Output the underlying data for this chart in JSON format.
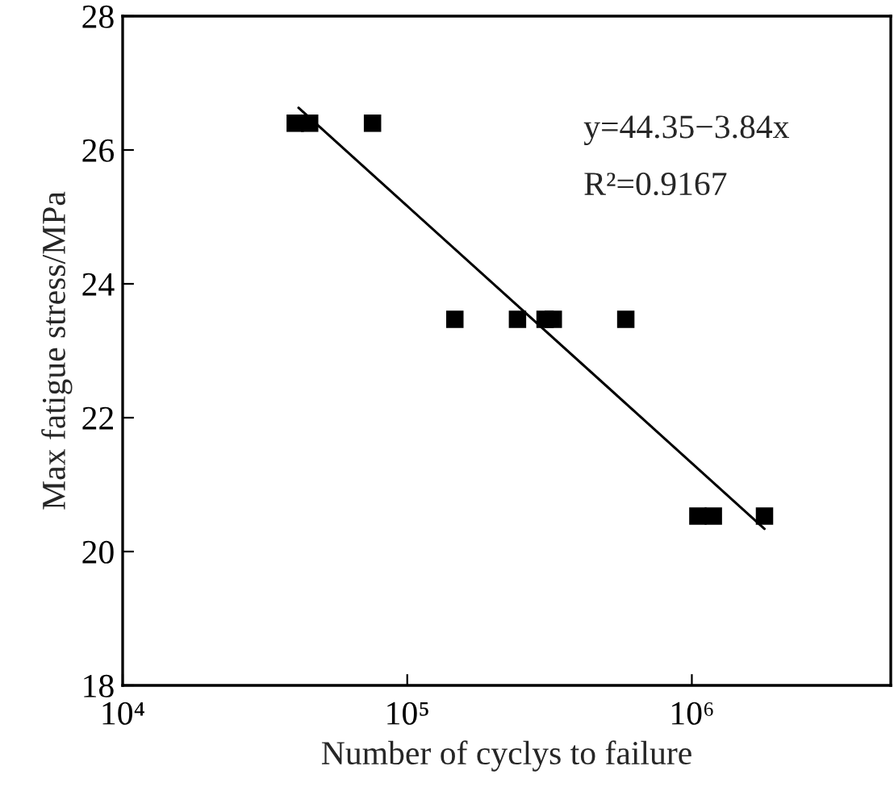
{
  "chart_data": {
    "type": "scatter",
    "xlabel": "Number of cyclys to failure",
    "ylabel": "Max fatigue stress/MPa",
    "log": "x",
    "marker": "square",
    "grid": false,
    "legend": false,
    "xlim": [
      10000,
      5000000
    ],
    "xticks": [
      {
        "value": 10000,
        "label": "10⁴"
      },
      {
        "value": 100000,
        "label": "10⁵"
      },
      {
        "value": 1000000,
        "label": "10⁶"
      }
    ],
    "ylim": [
      18,
      28
    ],
    "yticks": [
      18,
      20,
      22,
      24,
      26,
      28
    ],
    "series": [
      {
        "color": "#000000",
        "x": [
          40400,
          45400,
          75500,
          147000,
          244000,
          305000,
          326000,
          586000,
          1050000,
          1190000,
          1800000
        ],
        "values": [
          26.4,
          26.4,
          26.4,
          23.47,
          23.47,
          23.47,
          23.47,
          23.47,
          20.53,
          20.53,
          20.53
        ]
      },
      {
        "type": "line",
        "color": "#000000",
        "marker": "none",
        "x": [
          41500,
          1800000
        ],
        "values": [
          26.63,
          20.34
        ]
      }
    ],
    "annotations": [
      "y=44.35−3.84x",
      "R²=0.9167"
    ]
  }
}
